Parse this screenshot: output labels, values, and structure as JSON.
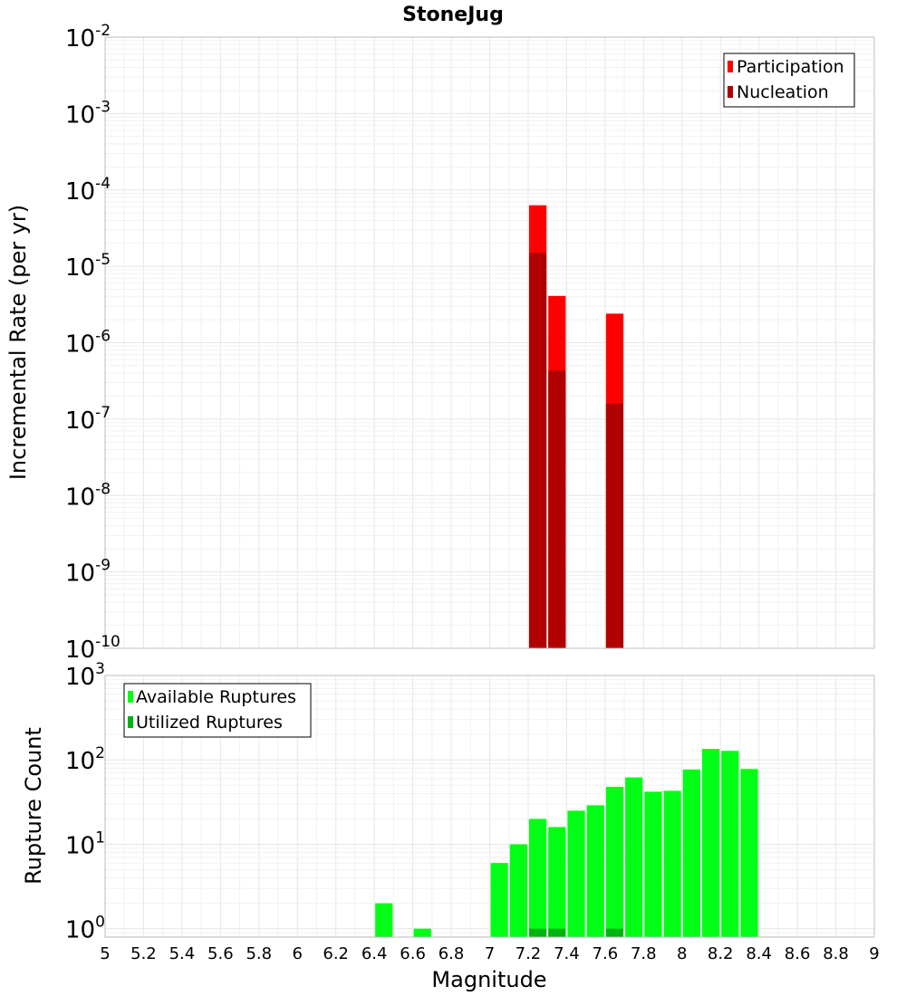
{
  "chart_data": [
    {
      "type": "bar",
      "title": "StoneJug",
      "xlabel": "",
      "ylabel": "Incremental Rate (per yr)",
      "yscale": "log",
      "ylim_exp": [
        -10,
        -2
      ],
      "xlim": [
        5,
        9
      ],
      "bar_width": 0.1,
      "legend": [
        "Participation",
        "Nucleation"
      ],
      "legend_position": "top-right",
      "colors": {
        "Participation": "#ff0000",
        "Nucleation": "#b00000"
      },
      "ytick_labels": [
        {
          "base": "10",
          "exp": "-2"
        },
        {
          "base": "10",
          "exp": "-3"
        },
        {
          "base": "10",
          "exp": "-4"
        },
        {
          "base": "10",
          "exp": "-5"
        },
        {
          "base": "10",
          "exp": "-6"
        },
        {
          "base": "10",
          "exp": "-7"
        },
        {
          "base": "10",
          "exp": "-8"
        },
        {
          "base": "10",
          "exp": "-9"
        },
        {
          "base": "10",
          "exp": "-10"
        }
      ],
      "series": [
        {
          "name": "Participation",
          "x": [
            7.25,
            7.35,
            7.65
          ],
          "values": [
            6.3e-05,
            4.1e-06,
            2.4e-06
          ]
        },
        {
          "name": "Nucleation",
          "x": [
            7.25,
            7.35,
            7.65
          ],
          "values": [
            1.5e-05,
            4.3e-07,
            1.6e-07
          ]
        }
      ]
    },
    {
      "type": "bar",
      "title": "",
      "xlabel": "Magnitude",
      "ylabel": "Rupture Count",
      "yscale": "log",
      "ylim_exp": [
        -0.1,
        3
      ],
      "xlim": [
        5,
        9
      ],
      "bar_width": 0.1,
      "legend": [
        "Available Ruptures",
        "Utilized Ruptures"
      ],
      "legend_position": "top-left",
      "colors": {
        "Available Ruptures": "#00ff14",
        "Utilized Ruptures": "#00b40f"
      },
      "ytick_labels": [
        {
          "base": "10",
          "exp": "3"
        },
        {
          "base": "10",
          "exp": "2"
        },
        {
          "base": "10",
          "exp": "1"
        },
        {
          "base": "10",
          "exp": "0"
        }
      ],
      "xtick_labels": [
        "5",
        "5.2",
        "5.4",
        "5.6",
        "5.8",
        "6",
        "6.2",
        "6.4",
        "6.6",
        "6.8",
        "7",
        "7.2",
        "7.4",
        "7.6",
        "7.8",
        "8",
        "8.2",
        "8.4",
        "8.6",
        "8.8",
        "9"
      ],
      "series": [
        {
          "name": "Available Ruptures",
          "x": [
            6.45,
            6.65,
            7.05,
            7.15,
            7.25,
            7.35,
            7.45,
            7.55,
            7.65,
            7.75,
            7.85,
            7.95,
            8.05,
            8.15,
            8.25,
            8.35
          ],
          "values": [
            2,
            1,
            6,
            10,
            20,
            16,
            25,
            29,
            48,
            62,
            42,
            43,
            77,
            135,
            128,
            78
          ]
        },
        {
          "name": "Utilized Ruptures",
          "x": [
            7.25,
            7.35,
            7.65
          ],
          "values": [
            1,
            1,
            1
          ]
        }
      ]
    }
  ]
}
